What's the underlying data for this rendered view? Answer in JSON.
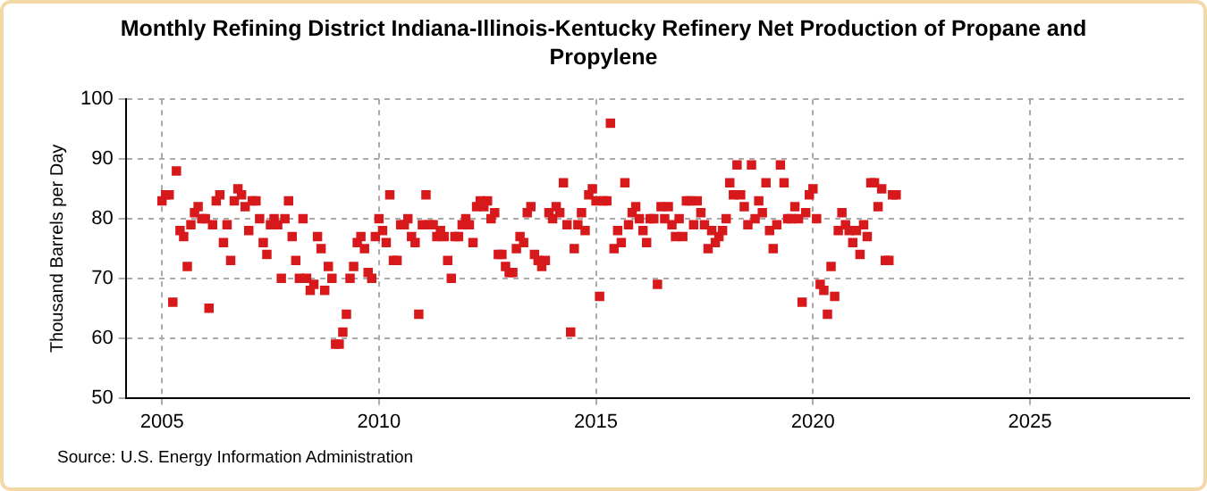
{
  "chart_data": {
    "type": "scatter",
    "title": "Monthly Refining District Indiana-Illinois-Kentucky Refinery Net Production of Propane and Propylene",
    "ylabel": "Thousand Barrels per Day",
    "annotations": [
      "Source: U.S. Energy Information Administration"
    ],
    "x": [
      "2005-01",
      "2005-02",
      "2005-03",
      "2005-04",
      "2005-05",
      "2005-06",
      "2005-07",
      "2005-08",
      "2005-09",
      "2005-10",
      "2005-11",
      "2005-12",
      "2006-01",
      "2006-02",
      "2006-03",
      "2006-04",
      "2006-05",
      "2006-06",
      "2006-07",
      "2006-08",
      "2006-09",
      "2006-10",
      "2006-11",
      "2006-12",
      "2007-01",
      "2007-02",
      "2007-03",
      "2007-04",
      "2007-05",
      "2007-06",
      "2007-07",
      "2007-08",
      "2007-09",
      "2007-10",
      "2007-11",
      "2007-12",
      "2008-01",
      "2008-02",
      "2008-03",
      "2008-04",
      "2008-05",
      "2008-06",
      "2008-07",
      "2008-08",
      "2008-09",
      "2008-10",
      "2008-11",
      "2008-12",
      "2009-01",
      "2009-02",
      "2009-03",
      "2009-04",
      "2009-05",
      "2009-06",
      "2009-07",
      "2009-08",
      "2009-09",
      "2009-10",
      "2009-11",
      "2009-12",
      "2010-01",
      "2010-02",
      "2010-03",
      "2010-04",
      "2010-05",
      "2010-06",
      "2010-07",
      "2010-08",
      "2010-09",
      "2010-10",
      "2010-11",
      "2010-12",
      "2011-01",
      "2011-02",
      "2011-03",
      "2011-04",
      "2011-05",
      "2011-06",
      "2011-07",
      "2011-08",
      "2011-09",
      "2011-10",
      "2011-11",
      "2011-12",
      "2012-01",
      "2012-02",
      "2012-03",
      "2012-04",
      "2012-05",
      "2012-06",
      "2012-07",
      "2012-08",
      "2012-09",
      "2012-10",
      "2012-11",
      "2012-12",
      "2013-01",
      "2013-02",
      "2013-03",
      "2013-04",
      "2013-05",
      "2013-06",
      "2013-07",
      "2013-08",
      "2013-09",
      "2013-10",
      "2013-11",
      "2013-12",
      "2014-01",
      "2014-02",
      "2014-03",
      "2014-04",
      "2014-05",
      "2014-06",
      "2014-07",
      "2014-08",
      "2014-09",
      "2014-10",
      "2014-11",
      "2014-12",
      "2015-01",
      "2015-02",
      "2015-03",
      "2015-04",
      "2015-05",
      "2015-06",
      "2015-07",
      "2015-08",
      "2015-09",
      "2015-10",
      "2015-11",
      "2015-12",
      "2016-01",
      "2016-02",
      "2016-03",
      "2016-04",
      "2016-05",
      "2016-06",
      "2016-07",
      "2016-08",
      "2016-09",
      "2016-10",
      "2016-11",
      "2016-12",
      "2017-01",
      "2017-02",
      "2017-03",
      "2017-04",
      "2017-05",
      "2017-06",
      "2017-07",
      "2017-08",
      "2017-09",
      "2017-10",
      "2017-11",
      "2017-12",
      "2018-01",
      "2018-02",
      "2018-03",
      "2018-04",
      "2018-05",
      "2018-06",
      "2018-07",
      "2018-08",
      "2018-09",
      "2018-10",
      "2018-11",
      "2018-12",
      "2019-01",
      "2019-02",
      "2019-03",
      "2019-04",
      "2019-05",
      "2019-06",
      "2019-07",
      "2019-08",
      "2019-09",
      "2019-10",
      "2019-11",
      "2019-12",
      "2020-01",
      "2020-02",
      "2020-03",
      "2020-04",
      "2020-05",
      "2020-06",
      "2020-07",
      "2020-08",
      "2020-09",
      "2020-10",
      "2020-11",
      "2020-12",
      "2021-01",
      "2021-02",
      "2021-03",
      "2021-04",
      "2021-05",
      "2021-06",
      "2021-07",
      "2021-08",
      "2021-09",
      "2021-10",
      "2021-11",
      "2021-12"
    ],
    "series": [
      {
        "color": "#d7191c",
        "values": [
          83,
          84,
          84,
          66,
          88,
          78,
          77,
          72,
          79,
          81,
          82,
          80,
          80,
          65,
          79,
          83,
          84,
          76,
          79,
          73,
          83,
          85,
          84,
          82,
          78,
          83,
          83,
          80,
          76,
          74,
          79,
          80,
          79,
          70,
          80,
          83,
          77,
          73,
          70,
          80,
          70,
          68,
          69,
          77,
          75,
          68,
          72,
          70,
          59,
          59,
          61,
          64,
          70,
          72,
          76,
          77,
          75,
          71,
          70,
          77,
          80,
          78,
          76,
          84,
          73,
          73,
          79,
          79,
          80,
          77,
          76,
          64,
          79,
          84,
          79,
          79,
          77,
          78,
          77,
          73,
          70,
          77,
          77,
          79,
          80,
          79,
          76,
          82,
          83,
          82,
          83,
          80,
          81,
          74,
          74,
          72,
          71,
          71,
          75,
          77,
          76,
          81,
          82,
          74,
          73,
          72,
          73,
          81,
          80,
          82,
          81,
          86,
          79,
          61,
          75,
          79,
          81,
          78,
          84,
          85,
          83,
          67,
          83,
          83,
          96,
          75,
          78,
          76,
          86,
          79,
          81,
          82,
          80,
          78,
          76,
          80,
          80,
          69,
          82,
          80,
          82,
          79,
          77,
          80,
          77,
          83,
          83,
          79,
          83,
          81,
          79,
          75,
          78,
          76,
          77,
          78,
          80,
          86,
          84,
          89,
          84,
          82,
          79,
          89,
          80,
          83,
          81,
          86,
          78,
          75,
          79,
          89,
          86,
          80,
          80,
          82,
          80,
          66,
          81,
          84,
          85,
          80,
          69,
          68,
          64,
          72,
          67,
          78,
          81,
          79,
          78,
          76,
          78,
          74,
          79,
          77,
          86,
          86,
          82,
          85,
          73,
          73,
          84,
          84
        ]
      }
    ],
    "xlim": [
      "2004-03",
      "2028-09"
    ],
    "xticks": [
      "2005",
      "2010",
      "2015",
      "2020",
      "2025"
    ],
    "ylim": [
      50,
      100
    ],
    "yticks": [
      50,
      60,
      70,
      80,
      90,
      100
    ],
    "grid": true,
    "marker": "square"
  }
}
